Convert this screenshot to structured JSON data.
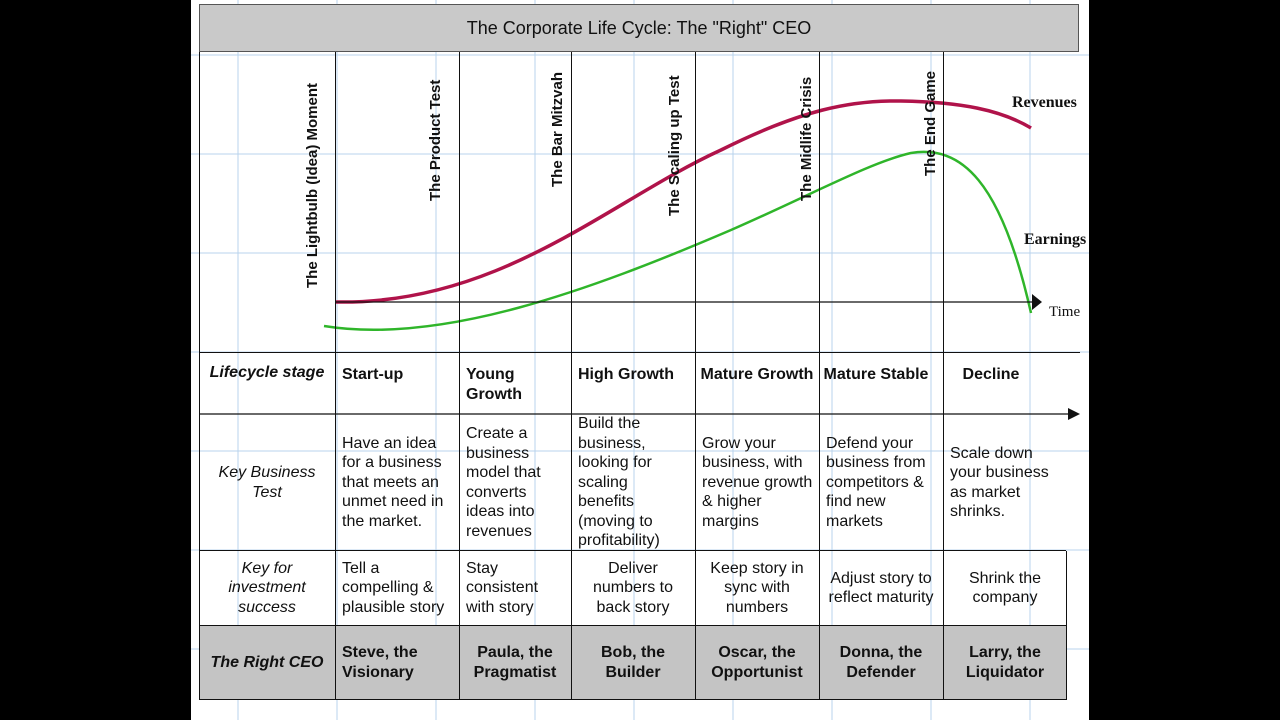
{
  "title": "The Corporate Life Cycle: The \"Right\" CEO",
  "milestones": [
    "The Lightbulb (Idea) Moment",
    "The Product Test",
    "The Bar Mitzvah",
    "The Scaling up Test",
    "The Midlife Crisis",
    "The End Game"
  ],
  "curve_labels": {
    "revenues": "Revenues",
    "earnings": "Earnings",
    "time": "Time"
  },
  "colors": {
    "revenues": "#b0134a",
    "earnings": "#2fb52a",
    "ceo_row": "#c4c4c4",
    "title_bar": "#c9c9c9"
  },
  "row_labels": {
    "stage": "Lifecycle stage",
    "test": "Key Business Test",
    "investment": "Key for investment success",
    "ceo": "The Right CEO"
  },
  "stages": [
    {
      "name": "Start-up",
      "test": "Have an idea for a business that meets an unmet need in the market.",
      "investment": "Tell a compelling & plausible story",
      "ceo": "Steve, the Visionary"
    },
    {
      "name": "Young Growth",
      "test": "Create a business model that converts ideas into revenues",
      "investment": "Stay consistent with story",
      "ceo": "Paula, the Pragmatist"
    },
    {
      "name": "High Growth",
      "test": "Build the business, looking for scaling benefits (moving to profitability)",
      "investment": "Deliver numbers to back story",
      "ceo": "Bob, the Builder"
    },
    {
      "name": "Mature Growth",
      "test": "Grow your business, with revenue growth & higher margins",
      "investment": "Keep story in sync with numbers",
      "ceo": "Oscar, the Opportunist"
    },
    {
      "name": "Mature Stable",
      "test": "Defend your business from competitors & find new markets",
      "investment": "Adjust story to reflect maturity",
      "ceo": "Donna, the Defender"
    },
    {
      "name": "Decline",
      "test": "Scale down your business as market shrinks.",
      "investment": "Shrink the company",
      "ceo": "Larry, the Liquidator"
    }
  ]
}
